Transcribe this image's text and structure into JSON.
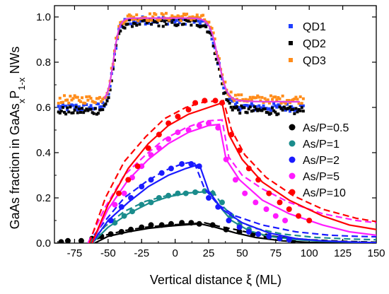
{
  "chart_data": {
    "type": "scatter",
    "xlabel": "Vertical distance ξ (ML)",
    "ylabel_parts": {
      "pre": "GaAs fraction in GaAs",
      "sub1": "x",
      "mid": "P",
      "sub2": "1-x",
      "post": " NWs"
    },
    "xlim": [
      -90,
      150
    ],
    "ylim": [
      0,
      1.05
    ],
    "xticks": [
      -75,
      -50,
      -25,
      0,
      25,
      50,
      75,
      100,
      125,
      150
    ],
    "yticks": [
      0.0,
      0.2,
      0.4,
      0.6,
      0.8,
      1.0
    ],
    "xtick_labels": [
      "-75",
      "-50",
      "-25",
      "0",
      "25",
      "50",
      "75",
      "100",
      "125",
      "150"
    ],
    "ytick_labels": [
      "0.0",
      "0.2",
      "0.4",
      "0.6",
      "0.8",
      "1.0"
    ],
    "legend_top": [
      {
        "name": "QD1",
        "color": "#1f3fff",
        "marker": "square"
      },
      {
        "name": "QD2",
        "color": "#000000",
        "marker": "square"
      },
      {
        "name": "QD3",
        "color": "#ff8c1a",
        "marker": "square"
      }
    ],
    "legend_bottom": [
      {
        "name": "As/P=0.5",
        "color": "#000000",
        "marker": "circle"
      },
      {
        "name": "As/P=1",
        "color": "#1a8c8c",
        "marker": "circle"
      },
      {
        "name": "As/P=2",
        "color": "#1a1aff",
        "marker": "circle"
      },
      {
        "name": "As/P=5",
        "color": "#ff1aff",
        "marker": "circle"
      },
      {
        "name": "As/P=10",
        "color": "#ff0000",
        "marker": "circle"
      }
    ],
    "qd_series": [
      {
        "name": "QD1",
        "color": "#1f3fff",
        "low_level": 0.6,
        "high_level": 0.985,
        "rise_x": -46,
        "fall_x": 32,
        "x_start": -87,
        "x_end": 96
      },
      {
        "name": "QD2",
        "color": "#000000",
        "low_level": 0.585,
        "high_level": 0.975,
        "rise_x": -46,
        "fall_x": 32,
        "x_start": -87,
        "x_end": 96
      },
      {
        "name": "QD3",
        "color": "#ff8c1a",
        "low_level": 0.635,
        "high_level": 1.0,
        "rise_x": -46,
        "fall_x": 32,
        "x_start": -87,
        "x_end": 96
      }
    ],
    "qd_fit": {
      "color": "#e040e0",
      "low_level": 0.625,
      "high_level": 0.995,
      "rise_x": -46,
      "fall_x": 32,
      "x_start": -53,
      "x_end": 93
    },
    "growth_series": [
      {
        "name": "As/P=0.5",
        "color": "#000000",
        "peak_x": 19,
        "peak_y": 0.09,
        "tail": 0.0,
        "points": [
          [
            -85,
            0.005
          ],
          [
            -80,
            0.01
          ],
          [
            -70,
            0.01
          ],
          [
            -62,
            0.02
          ],
          [
            -55,
            0.03
          ],
          [
            -48,
            0.04
          ],
          [
            -40,
            0.05
          ],
          [
            -33,
            0.06
          ],
          [
            -25,
            0.07
          ],
          [
            -18,
            0.08
          ],
          [
            -10,
            0.08
          ],
          [
            -3,
            0.085
          ],
          [
            5,
            0.09
          ],
          [
            12,
            0.09
          ],
          [
            18,
            0.085
          ],
          [
            28,
            0.08
          ],
          [
            38,
            0.06
          ],
          [
            48,
            0.05
          ],
          [
            58,
            0.04
          ],
          [
            68,
            0.03
          ],
          [
            78,
            0.02
          ],
          [
            88,
            0.01
          ]
        ],
        "solid": [
          [
            -60,
            0.0
          ],
          [
            -50,
            0.03
          ],
          [
            -35,
            0.05
          ],
          [
            -20,
            0.065
          ],
          [
            -5,
            0.075
          ],
          [
            10,
            0.082
          ],
          [
            19,
            0.085
          ],
          [
            30,
            0.07
          ],
          [
            45,
            0.045
          ],
          [
            60,
            0.025
          ],
          [
            80,
            0.01
          ],
          [
            100,
            0.003
          ],
          [
            125,
            0.0
          ],
          [
            150,
            0.0
          ]
        ],
        "dashed": [
          [
            -65,
            0.0
          ],
          [
            -52,
            0.035
          ],
          [
            -38,
            0.055
          ],
          [
            -22,
            0.07
          ],
          [
            -5,
            0.08
          ],
          [
            10,
            0.085
          ],
          [
            22,
            0.09
          ],
          [
            32,
            0.075
          ],
          [
            45,
            0.06
          ],
          [
            60,
            0.04
          ],
          [
            80,
            0.025
          ],
          [
            100,
            0.015
          ],
          [
            125,
            0.008
          ],
          [
            150,
            0.004
          ]
        ]
      },
      {
        "name": "As/P=1",
        "color": "#1a8c8c",
        "peak_x": 26,
        "peak_y": 0.23,
        "tail": 0.0,
        "points": [
          [
            -45,
            0.09
          ],
          [
            -38,
            0.12
          ],
          [
            -32,
            0.14
          ],
          [
            -25,
            0.17
          ],
          [
            -18,
            0.18
          ],
          [
            -12,
            0.2
          ],
          [
            -5,
            0.21
          ],
          [
            2,
            0.22
          ],
          [
            8,
            0.22
          ],
          [
            15,
            0.225
          ],
          [
            22,
            0.23
          ],
          [
            28,
            0.22
          ],
          [
            35,
            0.18
          ],
          [
            42,
            0.12
          ],
          [
            48,
            0.08
          ],
          [
            55,
            0.06
          ],
          [
            62,
            0.04
          ],
          [
            70,
            0.03
          ],
          [
            78,
            0.02
          ],
          [
            85,
            0.015
          ]
        ],
        "solid": [
          [
            -62,
            0.0
          ],
          [
            -50,
            0.07
          ],
          [
            -35,
            0.13
          ],
          [
            -20,
            0.175
          ],
          [
            -5,
            0.205
          ],
          [
            10,
            0.222
          ],
          [
            25,
            0.228
          ],
          [
            32,
            0.17
          ],
          [
            42,
            0.1
          ],
          [
            55,
            0.055
          ],
          [
            70,
            0.03
          ],
          [
            90,
            0.015
          ],
          [
            110,
            0.008
          ],
          [
            130,
            0.004
          ],
          [
            150,
            0.002
          ]
        ],
        "dashed": [
          [
            -64,
            0.0
          ],
          [
            -52,
            0.075
          ],
          [
            -38,
            0.14
          ],
          [
            -22,
            0.185
          ],
          [
            -5,
            0.212
          ],
          [
            12,
            0.225
          ],
          [
            28,
            0.232
          ],
          [
            36,
            0.16
          ],
          [
            46,
            0.1
          ],
          [
            60,
            0.065
          ],
          [
            80,
            0.04
          ],
          [
            105,
            0.025
          ],
          [
            130,
            0.018
          ],
          [
            150,
            0.015
          ]
        ]
      },
      {
        "name": "As/P=2",
        "color": "#1a1aff",
        "peak_x": 18,
        "peak_y": 0.35,
        "tail": 0.0,
        "points": [
          [
            -48,
            0.1
          ],
          [
            -40,
            0.16
          ],
          [
            -33,
            0.2
          ],
          [
            -25,
            0.25
          ],
          [
            -18,
            0.28
          ],
          [
            -10,
            0.31
          ],
          [
            -3,
            0.33
          ],
          [
            5,
            0.35
          ],
          [
            12,
            0.35
          ],
          [
            18,
            0.34
          ],
          [
            25,
            0.2
          ],
          [
            32,
            0.16
          ],
          [
            40,
            0.1
          ],
          [
            48,
            0.07
          ],
          [
            55,
            0.05
          ],
          [
            62,
            0.04
          ],
          [
            70,
            0.03
          ],
          [
            78,
            0.02
          ],
          [
            85,
            0.015
          ]
        ],
        "solid": [
          [
            -62,
            0.0
          ],
          [
            -50,
            0.1
          ],
          [
            -35,
            0.18
          ],
          [
            -20,
            0.25
          ],
          [
            -5,
            0.3
          ],
          [
            8,
            0.33
          ],
          [
            18,
            0.348
          ],
          [
            25,
            0.23
          ],
          [
            35,
            0.15
          ],
          [
            50,
            0.09
          ],
          [
            70,
            0.045
          ],
          [
            90,
            0.02
          ],
          [
            110,
            0.01
          ],
          [
            130,
            0.005
          ],
          [
            150,
            0.002
          ]
        ],
        "dashed": [
          [
            -65,
            0.0
          ],
          [
            -52,
            0.1
          ],
          [
            -38,
            0.2
          ],
          [
            -22,
            0.27
          ],
          [
            -8,
            0.32
          ],
          [
            5,
            0.35
          ],
          [
            14,
            0.36
          ],
          [
            22,
            0.24
          ],
          [
            32,
            0.17
          ],
          [
            45,
            0.12
          ],
          [
            65,
            0.08
          ],
          [
            90,
            0.05
          ],
          [
            115,
            0.035
          ],
          [
            135,
            0.03
          ],
          [
            150,
            0.028
          ]
        ]
      },
      {
        "name": "As/P=5",
        "color": "#ff1aff",
        "peak_x": 33,
        "peak_y": 0.52,
        "tail": 0.0,
        "points": [
          [
            -45,
            0.17
          ],
          [
            -38,
            0.22
          ],
          [
            -32,
            0.29
          ],
          [
            -25,
            0.34
          ],
          [
            -18,
            0.39
          ],
          [
            -12,
            0.42
          ],
          [
            -5,
            0.46
          ],
          [
            2,
            0.49
          ],
          [
            10,
            0.5
          ],
          [
            18,
            0.52
          ],
          [
            25,
            0.53
          ],
          [
            32,
            0.51
          ],
          [
            38,
            0.37
          ],
          [
            45,
            0.28
          ],
          [
            52,
            0.22
          ],
          [
            60,
            0.18
          ],
          [
            68,
            0.15
          ],
          [
            75,
            0.12
          ],
          [
            82,
            0.1
          ]
        ],
        "solid": [
          [
            -62,
            0.0
          ],
          [
            -50,
            0.15
          ],
          [
            -35,
            0.28
          ],
          [
            -20,
            0.37
          ],
          [
            -5,
            0.44
          ],
          [
            10,
            0.49
          ],
          [
            25,
            0.52
          ],
          [
            33,
            0.525
          ],
          [
            38,
            0.37
          ],
          [
            48,
            0.28
          ],
          [
            65,
            0.19
          ],
          [
            85,
            0.13
          ],
          [
            110,
            0.08
          ],
          [
            130,
            0.05
          ],
          [
            150,
            0.035
          ]
        ],
        "dashed": [
          [
            -65,
            0.0
          ],
          [
            -52,
            0.16
          ],
          [
            -38,
            0.3
          ],
          [
            -22,
            0.39
          ],
          [
            -8,
            0.46
          ],
          [
            8,
            0.51
          ],
          [
            22,
            0.54
          ],
          [
            35,
            0.545
          ],
          [
            40,
            0.38
          ],
          [
            50,
            0.3
          ],
          [
            65,
            0.24
          ],
          [
            85,
            0.18
          ],
          [
            110,
            0.13
          ],
          [
            135,
            0.1
          ],
          [
            150,
            0.09
          ]
        ]
      },
      {
        "name": "As/P=10",
        "color": "#ff0000",
        "peak_x": 35,
        "peak_y": 0.62,
        "tail": 0.0,
        "points": [
          [
            -42,
            0.22
          ],
          [
            -35,
            0.28
          ],
          [
            -28,
            0.34
          ],
          [
            -20,
            0.42
          ],
          [
            -12,
            0.48
          ],
          [
            -5,
            0.53
          ],
          [
            2,
            0.56
          ],
          [
            10,
            0.59
          ],
          [
            15,
            0.62
          ],
          [
            22,
            0.63
          ],
          [
            30,
            0.63
          ],
          [
            35,
            0.62
          ],
          [
            42,
            0.48
          ],
          [
            48,
            0.41
          ],
          [
            55,
            0.33
          ],
          [
            62,
            0.28
          ],
          [
            70,
            0.22
          ],
          [
            78,
            0.18
          ],
          [
            85,
            0.15
          ],
          [
            92,
            0.12
          ],
          [
            100,
            0.1
          ]
        ],
        "solid": [
          [
            -62,
            0.0
          ],
          [
            -50,
            0.17
          ],
          [
            -35,
            0.33
          ],
          [
            -20,
            0.44
          ],
          [
            -5,
            0.52
          ],
          [
            10,
            0.57
          ],
          [
            25,
            0.6
          ],
          [
            35,
            0.62
          ],
          [
            40,
            0.48
          ],
          [
            50,
            0.37
          ],
          [
            65,
            0.27
          ],
          [
            85,
            0.19
          ],
          [
            110,
            0.12
          ],
          [
            130,
            0.08
          ],
          [
            150,
            0.06
          ]
        ],
        "dashed": [
          [
            -64,
            0.0
          ],
          [
            -52,
            0.2
          ],
          [
            -38,
            0.36
          ],
          [
            -22,
            0.47
          ],
          [
            -8,
            0.55
          ],
          [
            8,
            0.6
          ],
          [
            22,
            0.625
          ],
          [
            36,
            0.63
          ],
          [
            42,
            0.5
          ],
          [
            52,
            0.39
          ],
          [
            68,
            0.29
          ],
          [
            88,
            0.21
          ],
          [
            110,
            0.15
          ],
          [
            135,
            0.11
          ],
          [
            150,
            0.095
          ]
        ]
      }
    ]
  }
}
